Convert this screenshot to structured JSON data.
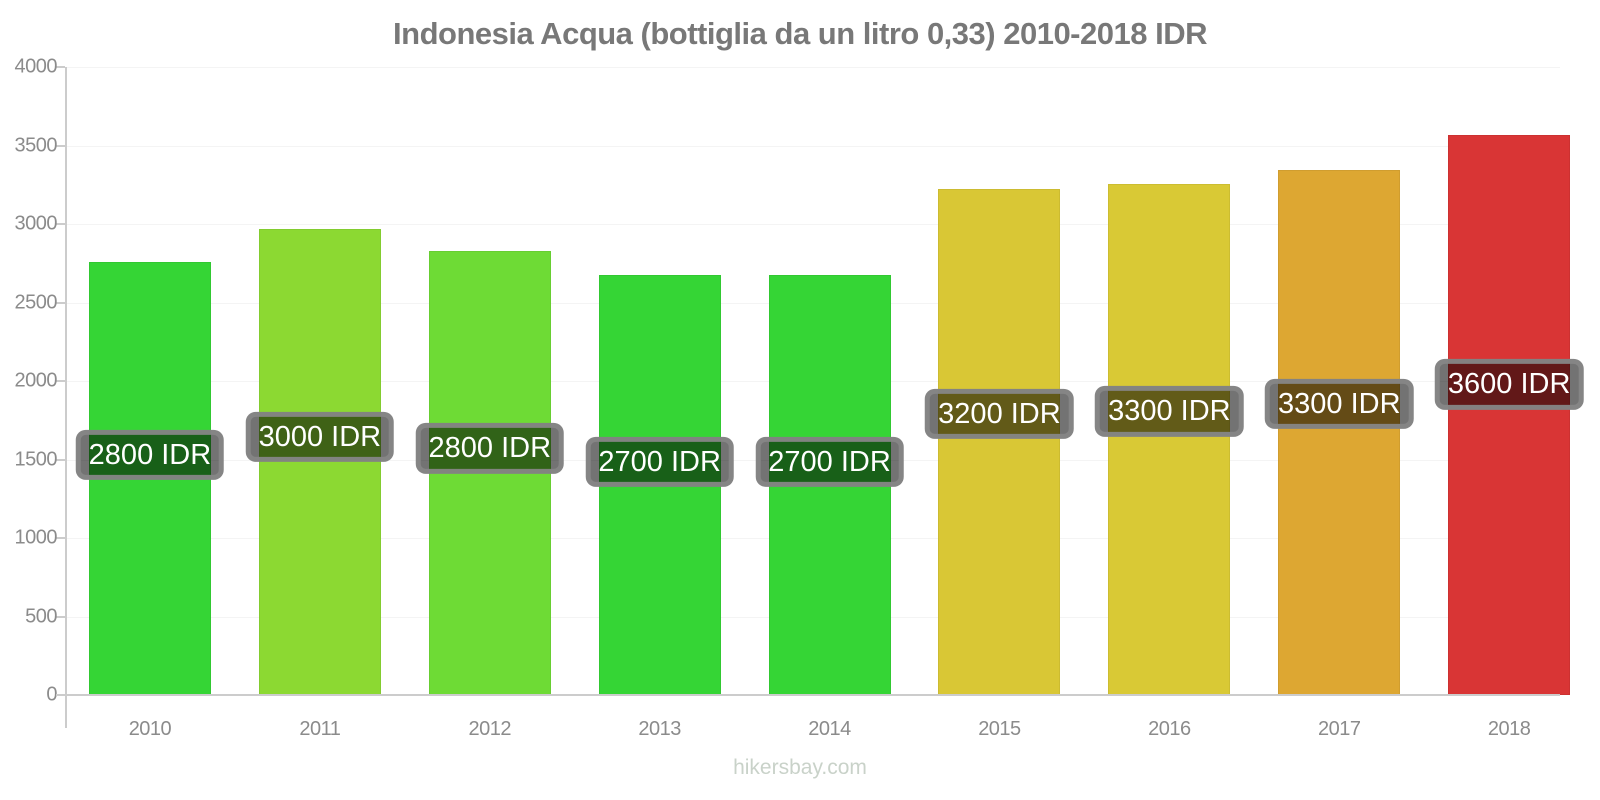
{
  "chart_data": {
    "type": "bar",
    "title": "Indonesia Acqua (bottiglia da un litro 0,33) 2010-2018 IDR",
    "xlabel": "",
    "ylabel": "",
    "ylim": [
      0,
      4000
    ],
    "yticks": [
      0,
      500,
      1000,
      1500,
      2000,
      2500,
      3000,
      3500,
      4000
    ],
    "grid": "faint-horizontal",
    "legend": "none",
    "categories": [
      "2010",
      "2011",
      "2012",
      "2013",
      "2014",
      "2015",
      "2016",
      "2017",
      "2018"
    ],
    "values": [
      2760,
      2965,
      2830,
      2675,
      2675,
      3225,
      3255,
      3345,
      3565
    ],
    "bar_labels": [
      "2800 IDR",
      "3000 IDR",
      "2800 IDR",
      "2700 IDR",
      "2700 IDR",
      "3200 IDR",
      "3300 IDR",
      "3300 IDR",
      "3600 IDR"
    ],
    "bar_colors": [
      "#35d535",
      "#8cd932",
      "#6edb35",
      "#35d535",
      "#35d535",
      "#d9c735",
      "#d9c935",
      "#dda732",
      "#d93535"
    ]
  },
  "footer": {
    "watermark": "hikersbay.com"
  },
  "colors": {
    "title_text": "#787878",
    "tick_text": "#8b8b8b",
    "axis": "#cccccc",
    "gridline": "#f4f4f4",
    "badge_background": "rgba(0,0,0,0.55)",
    "badge_border": "#868686",
    "badge_text": "#ffffff",
    "watermark_text": "#c9d2c9"
  }
}
